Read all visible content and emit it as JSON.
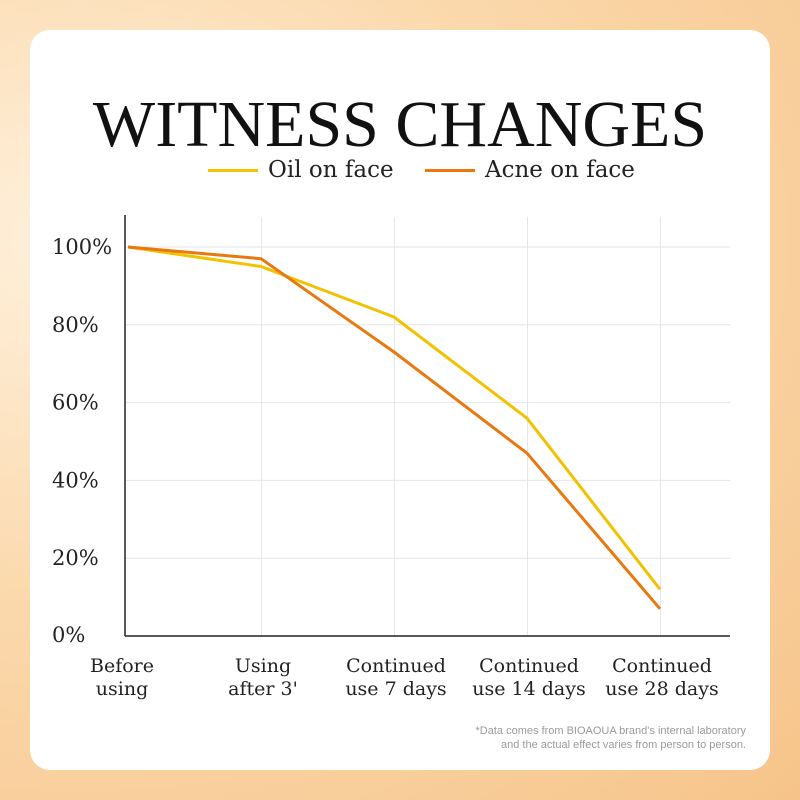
{
  "page": {
    "title": "WITNESS CHANGES",
    "footnote_line1": "*Data comes from BIOAOUA brand's internal laboratory",
    "footnote_line2": "and the actual effect varies from person to person."
  },
  "chart_data": {
    "type": "line",
    "title": "WITNESS CHANGES",
    "categories": [
      "Before using",
      "Using after 3'",
      "Continued use 7 days",
      "Continued use 14 days",
      "Continued use 28 days"
    ],
    "category_lines": [
      [
        "Before",
        "using"
      ],
      [
        "Using",
        "after 3'"
      ],
      [
        "Continued",
        "use 7 days"
      ],
      [
        "Continued",
        "use 14 days"
      ],
      [
        "Continued",
        "use 28 days"
      ]
    ],
    "series": [
      {
        "name": "Oil on face",
        "color": "#f2c200",
        "values": [
          100,
          95,
          82,
          56,
          12
        ]
      },
      {
        "name": "Acne on face",
        "color": "#e9780f",
        "values": [
          100,
          97,
          73,
          47,
          7
        ]
      }
    ],
    "yticks": [
      "0%",
      "20%",
      "40%",
      "60%",
      "80%",
      "100%"
    ],
    "ytick_values": [
      0,
      20,
      40,
      60,
      80,
      100
    ],
    "ylim": [
      0,
      100
    ],
    "grid": true,
    "legend_position": "top-center"
  }
}
